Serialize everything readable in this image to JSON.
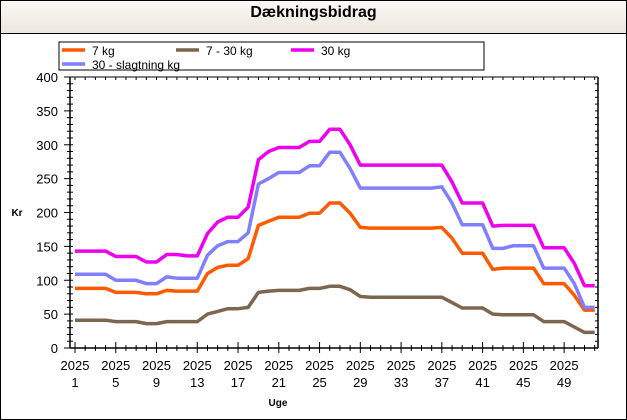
{
  "chart_data": {
    "type": "line",
    "title": "Dækningsbidrag",
    "xlabel": "Uge",
    "ylabel": "Kr",
    "ylim": [
      0,
      400
    ],
    "yticks": [
      "0",
      "50",
      "100",
      "150",
      "200",
      "250",
      "300",
      "350",
      "400"
    ],
    "x_year": "2025",
    "xtick_weeks": [
      "1",
      "5",
      "9",
      "13",
      "17",
      "21",
      "25",
      "29",
      "33",
      "37",
      "41",
      "45",
      "49"
    ],
    "x": [
      1,
      2,
      3,
      4,
      5,
      6,
      7,
      8,
      9,
      10,
      11,
      12,
      13,
      14,
      15,
      16,
      17,
      18,
      19,
      20,
      21,
      22,
      23,
      24,
      25,
      26,
      27,
      28,
      29,
      30,
      31,
      32,
      33,
      34,
      35,
      36,
      37,
      38,
      39,
      40,
      41,
      42,
      43,
      44,
      45,
      46,
      47,
      48,
      49,
      50,
      51,
      52
    ],
    "legend_position": "top",
    "series": [
      {
        "name": "7 kg",
        "color": "#ff5a00",
        "values": [
          88,
          88,
          88,
          88,
          82,
          82,
          82,
          80,
          80,
          85,
          84,
          84,
          84,
          110,
          119,
          122,
          122,
          132,
          181,
          187,
          193,
          193,
          193,
          199,
          199,
          214,
          214,
          199,
          178,
          177,
          177,
          177,
          177,
          177,
          177,
          177,
          178,
          162,
          140,
          140,
          140,
          116,
          118,
          118,
          118,
          118,
          95,
          95,
          95,
          78,
          56,
          56
        ]
      },
      {
        "name": "7 - 30 kg",
        "color": "#7d6650",
        "values": [
          41,
          41,
          41,
          41,
          39,
          39,
          39,
          36,
          36,
          39,
          39,
          39,
          39,
          50,
          54,
          58,
          58,
          60,
          82,
          84,
          85,
          85,
          85,
          88,
          88,
          91,
          91,
          86,
          76,
          75,
          75,
          75,
          75,
          75,
          75,
          75,
          75,
          67,
          59,
          59,
          59,
          50,
          49,
          49,
          49,
          49,
          39,
          39,
          39,
          31,
          23,
          23
        ]
      },
      {
        "name": "30 kg",
        "color": "#ee00ee",
        "values": [
          143,
          143,
          143,
          143,
          135,
          135,
          135,
          127,
          127,
          138,
          138,
          136,
          136,
          169,
          186,
          193,
          193,
          208,
          278,
          290,
          296,
          296,
          296,
          305,
          305,
          323,
          323,
          300,
          270,
          270,
          270,
          270,
          270,
          270,
          270,
          270,
          270,
          245,
          214,
          214,
          214,
          180,
          181,
          181,
          181,
          181,
          148,
          148,
          148,
          125,
          92,
          92
        ]
      },
      {
        "name": "30 - slagtning kg",
        "color": "#7f7fff",
        "values": [
          109,
          109,
          109,
          109,
          100,
          100,
          100,
          95,
          95,
          105,
          103,
          103,
          103,
          137,
          151,
          157,
          157,
          170,
          242,
          250,
          259,
          259,
          259,
          269,
          269,
          289,
          289,
          265,
          236,
          236,
          236,
          236,
          236,
          236,
          236,
          236,
          238,
          214,
          182,
          182,
          182,
          147,
          147,
          151,
          151,
          151,
          118,
          118,
          118,
          95,
          60,
          60
        ]
      }
    ]
  }
}
